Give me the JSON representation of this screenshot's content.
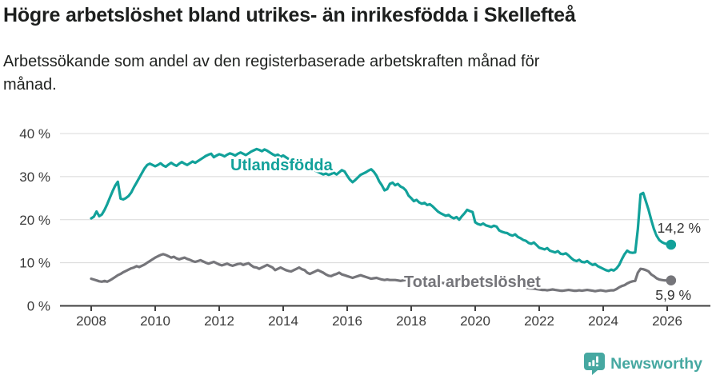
{
  "header": {
    "title": "Högre arbetslöshet bland utrikes- än inrikesfödda i Skellefteå",
    "subtitle": "Arbetssökande som andel av den registerbaserade arbetskraften månad för månad."
  },
  "chart_data": {
    "type": "line",
    "title": "Högre arbetslöshet bland utrikes- än inrikesfödda i Skellefteå",
    "subtitle": "Arbetssökande som andel av den registerbaserade arbetskraften månad för månad.",
    "x_start": {
      "year": 2008,
      "month": 1
    },
    "x_interval": "monthly",
    "x_tick_labels": [
      "2008",
      "2010",
      "2012",
      "2014",
      "2016",
      "2018",
      "2020",
      "2022",
      "2024",
      "2026"
    ],
    "ylim": [
      0,
      40
    ],
    "yticks": [
      0,
      10,
      20,
      30,
      40
    ],
    "ytick_suffix": " %",
    "grid": true,
    "legend": "inline-labels",
    "series": [
      {
        "name": "Utlandsfödda",
        "color": "#12a19a",
        "end_label": "14,2 %",
        "end_value": 14.2,
        "values": [
          20.3,
          20.7,
          21.9,
          20.8,
          21.2,
          22.3,
          23.6,
          25.1,
          26.6,
          27.9,
          28.8,
          24.9,
          24.7,
          25.0,
          25.5,
          26.3,
          27.5,
          28.6,
          29.7,
          30.8,
          31.9,
          32.7,
          33.0,
          32.7,
          32.4,
          32.7,
          33.1,
          32.6,
          32.3,
          32.8,
          33.2,
          32.8,
          32.5,
          33.0,
          33.4,
          33.0,
          32.7,
          33.1,
          33.5,
          33.2,
          33.6,
          34.0,
          34.4,
          34.8,
          35.1,
          35.3,
          34.5,
          34.9,
          35.2,
          35.0,
          34.7,
          35.1,
          35.4,
          35.2,
          34.9,
          35.3,
          35.6,
          35.3,
          35.0,
          35.4,
          35.8,
          36.1,
          36.4,
          36.2,
          35.9,
          36.3,
          36.0,
          35.6,
          35.2,
          34.9,
          35.1,
          34.6,
          34.9,
          34.5,
          34.1,
          33.8,
          33.4,
          33.0,
          32.7,
          32.4,
          32.1,
          31.8,
          32.0,
          31.7,
          31.4,
          31.1,
          30.8,
          30.5,
          30.7,
          30.4,
          30.6,
          30.9,
          30.5,
          31.0,
          31.5,
          31.2,
          30.2,
          29.3,
          28.7,
          29.2,
          29.8,
          30.4,
          30.7,
          31.0,
          31.4,
          31.7,
          31.1,
          30.2,
          28.9,
          28.0,
          26.8,
          27.1,
          28.3,
          28.6,
          28.0,
          28.3,
          27.7,
          27.4,
          26.8,
          25.6,
          25.0,
          24.3,
          24.6,
          24.0,
          23.7,
          23.9,
          23.4,
          23.6,
          23.1,
          22.5,
          21.9,
          21.5,
          21.2,
          20.9,
          21.1,
          20.6,
          20.3,
          20.6,
          20.0,
          20.8,
          21.5,
          22.3,
          22.0,
          21.8,
          19.4,
          19.0,
          18.8,
          19.1,
          18.7,
          18.5,
          18.3,
          18.6,
          18.4,
          17.5,
          17.2,
          17.0,
          16.9,
          16.5,
          16.3,
          16.6,
          16.0,
          15.7,
          15.3,
          15.1,
          14.6,
          14.4,
          14.7,
          14.1,
          13.5,
          13.3,
          13.1,
          13.4,
          12.8,
          12.6,
          12.4,
          12.7,
          12.1,
          12.0,
          12.2,
          11.7,
          11.1,
          10.6,
          10.4,
          10.7,
          10.2,
          10.1,
          10.4,
          9.9,
          9.5,
          9.7,
          9.2,
          8.9,
          8.6,
          8.3,
          8.1,
          8.4,
          8.2,
          8.7,
          9.5,
          10.8,
          12.0,
          12.8,
          12.4,
          12.3,
          12.4,
          17.8,
          25.9,
          26.2,
          24.3,
          22.3,
          20.0,
          17.9,
          16.3,
          15.3,
          14.8,
          14.5,
          14.3,
          14.2
        ]
      },
      {
        "name": "Total arbetslöshet",
        "color": "#75757a",
        "end_label": "5,9 %",
        "end_value": 5.9,
        "values": [
          6.3,
          6.1,
          5.9,
          5.7,
          5.6,
          5.8,
          5.6,
          5.9,
          6.3,
          6.7,
          7.1,
          7.4,
          7.8,
          8.1,
          8.4,
          8.7,
          8.9,
          9.2,
          9.0,
          9.3,
          9.6,
          10.0,
          10.4,
          10.8,
          11.2,
          11.5,
          11.8,
          12.0,
          11.8,
          11.5,
          11.2,
          11.4,
          11.0,
          10.8,
          11.0,
          11.2,
          10.9,
          10.7,
          10.4,
          10.2,
          10.4,
          10.6,
          10.3,
          10.0,
          9.8,
          10.0,
          10.2,
          9.9,
          9.6,
          9.4,
          9.6,
          9.8,
          9.5,
          9.3,
          9.5,
          9.7,
          9.8,
          9.5,
          9.7,
          9.9,
          9.4,
          9.0,
          8.9,
          8.6,
          8.9,
          9.2,
          9.5,
          9.2,
          8.9,
          8.3,
          8.6,
          8.9,
          8.6,
          8.3,
          8.1,
          8.0,
          8.3,
          8.6,
          8.9,
          8.5,
          8.3,
          7.7,
          7.4,
          7.7,
          8.0,
          8.3,
          8.0,
          7.7,
          7.3,
          7.0,
          6.9,
          7.2,
          7.4,
          7.7,
          7.3,
          7.1,
          6.9,
          6.7,
          6.5,
          6.7,
          6.9,
          7.1,
          6.9,
          6.7,
          6.5,
          6.3,
          6.4,
          6.5,
          6.3,
          6.1,
          6.0,
          6.1,
          6.0,
          6.0,
          6.0,
          5.9,
          5.8,
          5.9,
          6.0,
          5.8,
          5.7,
          5.6,
          5.5,
          5.4,
          5.5,
          5.6,
          5.5,
          5.4,
          5.3,
          5.2,
          5.3,
          5.4,
          5.3,
          5.2,
          5.1,
          5.0,
          5.1,
          5.2,
          5.3,
          5.2,
          5.1,
          5.2,
          5.3,
          5.2,
          5.4,
          5.5,
          5.8,
          6.2,
          6.4,
          6.5,
          6.4,
          6.2,
          6.0,
          5.8,
          5.6,
          5.5,
          5.3,
          5.1,
          4.9,
          4.7,
          4.5,
          4.4,
          4.3,
          4.2,
          4.1,
          4.0,
          4.0,
          3.9,
          3.8,
          3.7,
          3.7,
          3.6,
          3.7,
          3.8,
          3.7,
          3.6,
          3.5,
          3.5,
          3.6,
          3.7,
          3.6,
          3.5,
          3.5,
          3.6,
          3.5,
          3.6,
          3.7,
          3.6,
          3.5,
          3.4,
          3.5,
          3.6,
          3.5,
          3.4,
          3.5,
          3.6,
          3.6,
          3.9,
          4.3,
          4.6,
          4.8,
          5.2,
          5.5,
          5.7,
          5.8,
          7.7,
          8.6,
          8.5,
          8.3,
          8.0,
          7.3,
          6.9,
          6.4,
          6.1,
          6.0,
          5.9,
          5.9,
          5.9
        ]
      }
    ]
  },
  "footer": {
    "brand": "Newsworthy"
  },
  "colors": {
    "accent_teal": "#12a19a",
    "series_gray": "#75757a",
    "logo_teal": "#46a8a1",
    "axis_text": "#3a3a3a",
    "grid_line": "#d8d8d8",
    "axis_line": "#3f3f3f",
    "title_text": "#1d1f1e",
    "value_label": "#333333"
  }
}
